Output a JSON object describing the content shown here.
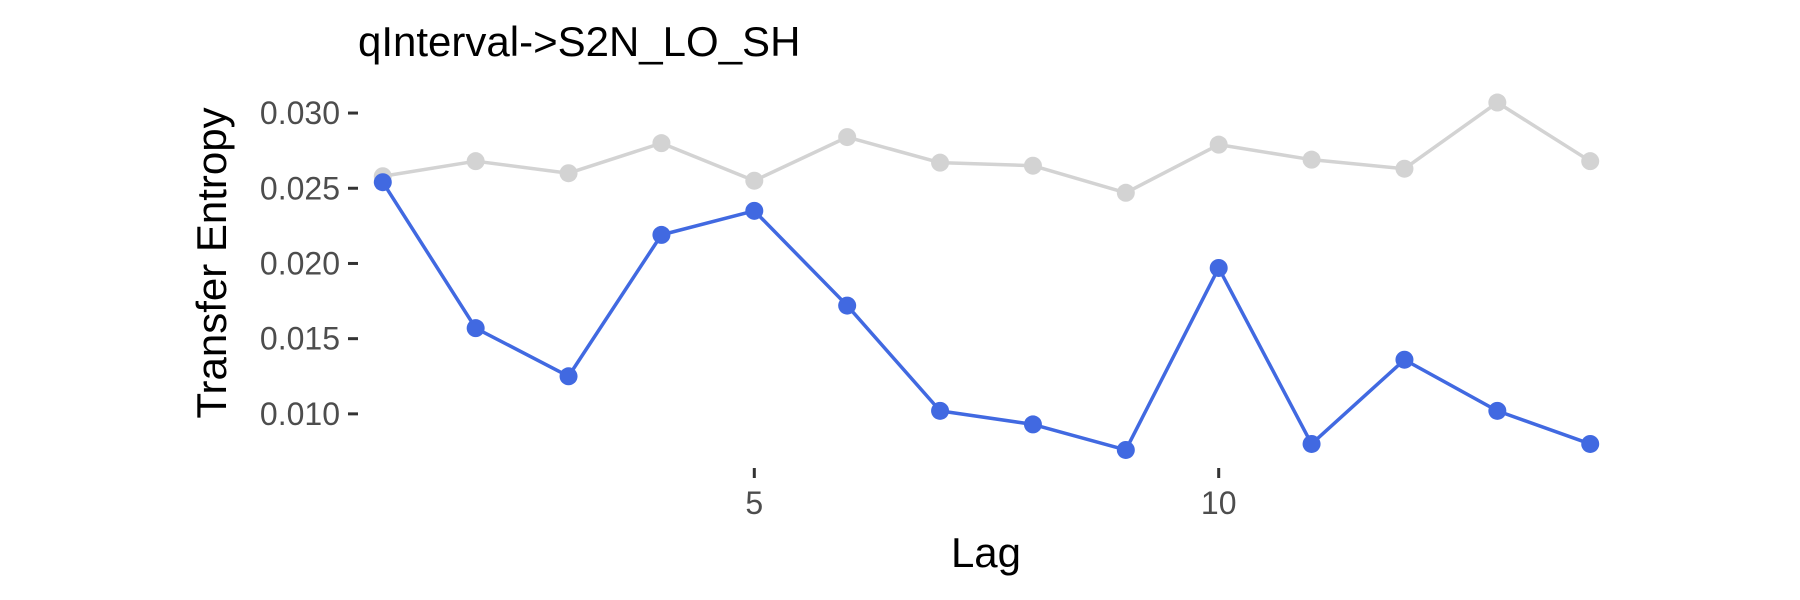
{
  "chart_data": {
    "type": "line",
    "title": "qInterval->S2N_LO_SH",
    "xlabel": "Lag",
    "ylabel": "Transfer Entropy",
    "xlim": [
      0.97,
      14.03
    ],
    "ylim": [
      0.0068,
      0.0312
    ],
    "xticks": [
      5,
      10
    ],
    "yticks": [
      0.01,
      0.015,
      0.02,
      0.025,
      0.03
    ],
    "ytick_labels": [
      "0.010",
      "0.015",
      "0.020",
      "0.025",
      "0.030"
    ],
    "grid": false,
    "legend": "none",
    "x": [
      1,
      2,
      3,
      4,
      5,
      6,
      7,
      8,
      9,
      10,
      11,
      12,
      13,
      14
    ],
    "series": [
      {
        "color": "#d3d3d3",
        "values": [
          0.0258,
          0.0268,
          0.026,
          0.028,
          0.0255,
          0.0284,
          0.0267,
          0.0265,
          0.0247,
          0.0279,
          0.0269,
          0.0263,
          0.0307,
          0.0268
        ]
      },
      {
        "color": "#4169e1",
        "values": [
          0.0254,
          0.0157,
          0.0125,
          0.0219,
          0.0235,
          0.0172,
          0.0102,
          0.0093,
          0.0076,
          0.0197,
          0.008,
          0.0136,
          0.0102,
          0.008
        ]
      }
    ]
  }
}
